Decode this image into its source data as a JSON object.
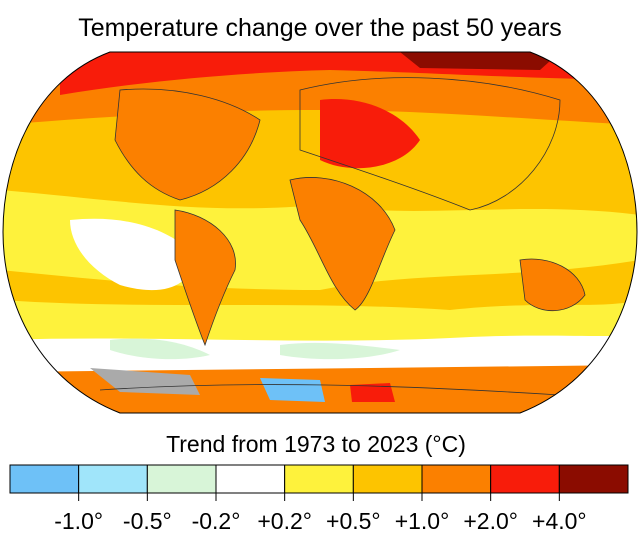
{
  "title": "Temperature change over the past 50 years",
  "legend": {
    "title": "Trend from 1973 to 2023 (°C)",
    "colors": [
      "#6ec1f7",
      "#a0e5fa",
      "#d8f5d8",
      "#ffffff",
      "#fef23c",
      "#fdc400",
      "#fb8000",
      "#f81c0a",
      "#8b0c00"
    ],
    "labels": [
      "-1.0°",
      "-0.5°",
      "-0.2°",
      "+0.2°",
      "+0.5°",
      "+1.0°",
      "+2.0°",
      "+4.0°"
    ]
  }
}
